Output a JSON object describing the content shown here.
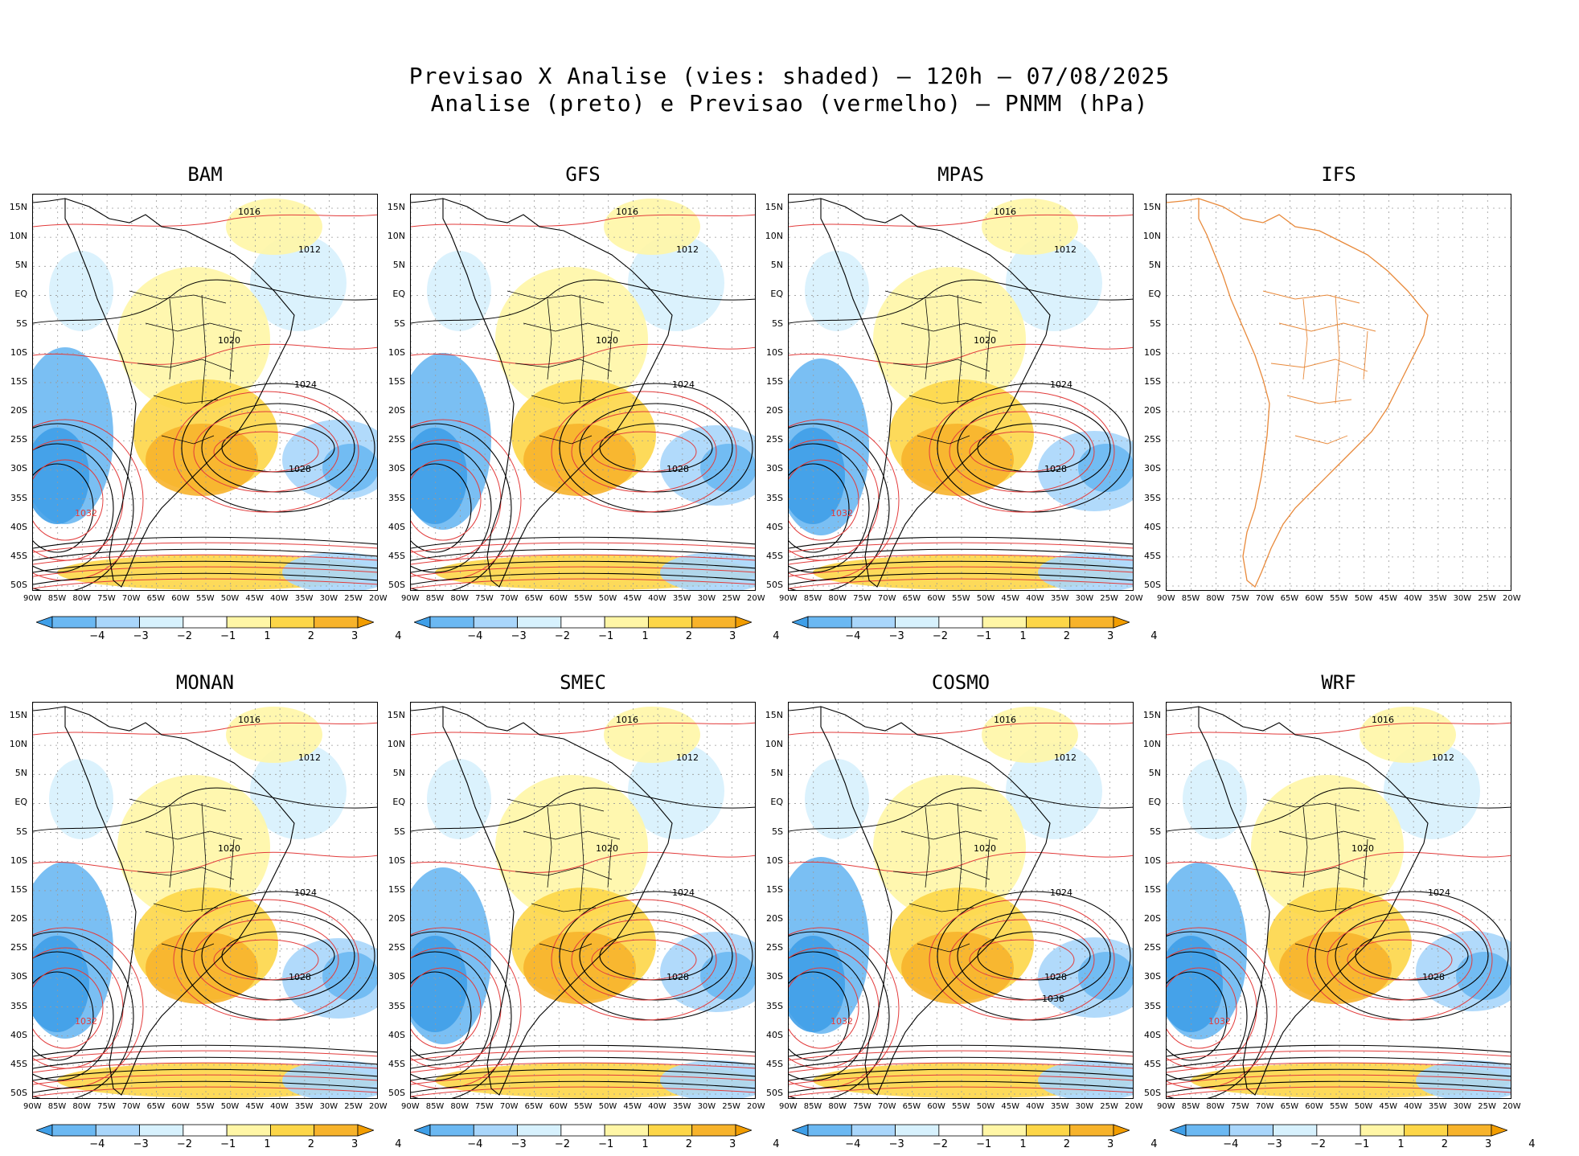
{
  "figure": {
    "title_line1": "Previsao X Analise (vies: shaded) – 120h – 07/08/2025",
    "title_line2": "Analise (preto) e Previsao (vermelho) – PNMM (hPa)"
  },
  "lat_labels": [
    "15N",
    "10N",
    "5N",
    "EQ",
    "5S",
    "10S",
    "15S",
    "20S",
    "25S",
    "30S",
    "35S",
    "40S",
    "45S",
    "50S"
  ],
  "lon_labels": [
    "90W",
    "85W",
    "80W",
    "75W",
    "70W",
    "65W",
    "60W",
    "55W",
    "50W",
    "45W",
    "40W",
    "35W",
    "30W",
    "25W",
    "20W"
  ],
  "colorbar": {
    "labels": [
      "−4",
      "−3",
      "−2",
      "−1",
      "1",
      "2",
      "3",
      "4"
    ],
    "colors": [
      "#3f9fe8",
      "#6bb8f2",
      "#a9d6fb",
      "#d7f1fd",
      "#ffffff",
      "#fff6a6",
      "#fdd648",
      "#f7b32b",
      "#f29d00"
    ]
  },
  "colors": {
    "analysis_contour": "#000000",
    "forecast_contour": "#e23b3b",
    "ifs_coastline": "#e8893a",
    "grid": "#9a9a9a"
  },
  "panels": [
    {
      "name": "BAM",
      "highs": [
        "1028",
        "1032"
      ],
      "labels": [
        "1016",
        "1012",
        "1020",
        "1024"
      ],
      "has_colorbar": true
    },
    {
      "name": "GFS",
      "highs": [
        "1028"
      ],
      "labels": [
        "1016",
        "1012",
        "1020",
        "1024"
      ],
      "has_colorbar": true
    },
    {
      "name": "MPAS",
      "highs": [
        "1028",
        "1032"
      ],
      "labels": [
        "1016",
        "1012",
        "1020",
        "1024"
      ],
      "has_colorbar": true
    },
    {
      "name": "IFS",
      "highs": [],
      "labels": [],
      "has_colorbar": false
    },
    {
      "name": "MONAN",
      "highs": [
        "1028",
        "1032"
      ],
      "labels": [
        "1016",
        "1012",
        "1020",
        "1024"
      ],
      "has_colorbar": true
    },
    {
      "name": "SMEC",
      "highs": [
        "1028"
      ],
      "labels": [
        "1016",
        "1012",
        "1020",
        "1024"
      ],
      "has_colorbar": true
    },
    {
      "name": "COSMO",
      "highs": [
        "1028",
        "1032",
        "1036"
      ],
      "labels": [
        "1016",
        "1012",
        "1020",
        "1024"
      ],
      "has_colorbar": true
    },
    {
      "name": "WRF",
      "highs": [
        "1028",
        "1032"
      ],
      "labels": [
        "1016",
        "1012",
        "1020",
        "1024"
      ],
      "has_colorbar": true
    }
  ]
}
